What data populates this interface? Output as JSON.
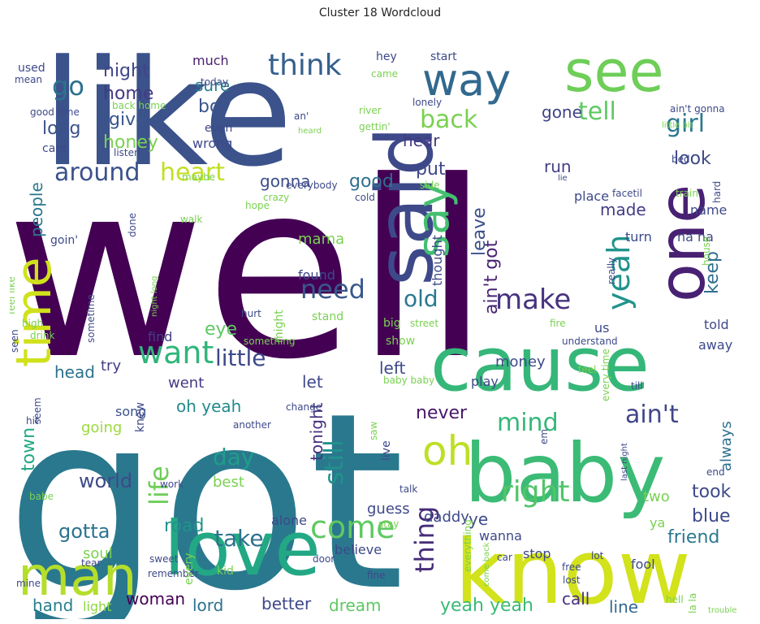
{
  "title": "Cluster 18 Wordcloud",
  "colormap": "viridis",
  "words": [
    {
      "text": "well",
      "color": "#440154"
    },
    {
      "text": "got",
      "color": "#2a788e"
    },
    {
      "text": "like",
      "color": "#3b528b"
    },
    {
      "text": "know",
      "color": "#d2e21b"
    },
    {
      "text": "cause",
      "color": "#35b779"
    },
    {
      "text": "baby",
      "color": "#3bbb75"
    },
    {
      "text": "love",
      "color": "#22a884"
    },
    {
      "text": "said",
      "color": "#3e4989"
    },
    {
      "text": "see",
      "color": "#6ece58"
    },
    {
      "text": "one",
      "color": "#482173"
    },
    {
      "text": "man",
      "color": "#b5de2b"
    },
    {
      "text": "way",
      "color": "#31688e"
    },
    {
      "text": "time",
      "color": "#d0e11c"
    },
    {
      "text": "say",
      "color": "#44bf70"
    },
    {
      "text": "oh",
      "color": "#bddf26"
    },
    {
      "text": "think",
      "color": "#355f8d"
    },
    {
      "text": "want",
      "color": "#31b57b"
    },
    {
      "text": "make",
      "color": "#46337e"
    },
    {
      "text": "yeah",
      "color": "#20938c"
    },
    {
      "text": "go",
      "color": "#2c728e"
    },
    {
      "text": "right",
      "color": "#52c569"
    },
    {
      "text": "come",
      "color": "#5ec962"
    },
    {
      "text": "need",
      "color": "#38588c"
    },
    {
      "text": "around",
      "color": "#3b528b"
    },
    {
      "text": "heart",
      "color": "#c2df23"
    },
    {
      "text": "little",
      "color": "#3e4989"
    },
    {
      "text": "tell",
      "color": "#5ec962"
    },
    {
      "text": "back",
      "color": "#7ad151"
    },
    {
      "text": "girl",
      "color": "#2a788e"
    },
    {
      "text": "mind",
      "color": "#35b779"
    },
    {
      "text": "ain't",
      "color": "#3f4788"
    },
    {
      "text": "old",
      "color": "#2a788e"
    },
    {
      "text": "life",
      "color": "#6ece58"
    },
    {
      "text": "day",
      "color": "#1f9e89"
    },
    {
      "text": "still",
      "color": "#21918c"
    },
    {
      "text": "thing",
      "color": "#472c7a"
    },
    {
      "text": "take",
      "color": "#2c728e"
    },
    {
      "text": "night",
      "color": "#404688"
    },
    {
      "text": "home",
      "color": "#443a83"
    },
    {
      "text": "give",
      "color": "#39568c"
    },
    {
      "text": "honey",
      "color": "#7ad151"
    },
    {
      "text": "long",
      "color": "#3b528b"
    },
    {
      "text": "boy",
      "color": "#3a548c"
    },
    {
      "text": "sure",
      "color": "#287d8e"
    },
    {
      "text": "much",
      "color": "#481f70"
    },
    {
      "text": "good",
      "color": "#2d708e"
    },
    {
      "text": "gonna",
      "color": "#3d4e8a"
    },
    {
      "text": "put",
      "color": "#3f4889"
    },
    {
      "text": "run",
      "color": "#433e85"
    },
    {
      "text": "gone",
      "color": "#404588"
    },
    {
      "text": "look",
      "color": "#3e4a89"
    },
    {
      "text": "hear",
      "color": "#443983"
    },
    {
      "text": "ain't got",
      "color": "#482475"
    },
    {
      "text": "made",
      "color": "#433d84"
    },
    {
      "text": "keep",
      "color": "#2e6f8e"
    },
    {
      "text": "leave",
      "color": "#3c508b"
    },
    {
      "text": "mama",
      "color": "#7ad151"
    },
    {
      "text": "people",
      "color": "#2a788e"
    },
    {
      "text": "town",
      "color": "#22a884"
    },
    {
      "text": "world",
      "color": "#3e4989"
    },
    {
      "text": "gotta",
      "color": "#2c728e"
    },
    {
      "text": "road",
      "color": "#20938c"
    },
    {
      "text": "head",
      "color": "#2c728e"
    },
    {
      "text": "let",
      "color": "#3e4989"
    },
    {
      "text": "left",
      "color": "#3e4989"
    },
    {
      "text": "never",
      "color": "#481769"
    },
    {
      "text": "tonight",
      "color": "#46307e"
    },
    {
      "text": "eye",
      "color": "#5ec962"
    },
    {
      "text": "find",
      "color": "#433e85"
    },
    {
      "text": "try",
      "color": "#433e85"
    },
    {
      "text": "went",
      "color": "#443b84"
    },
    {
      "text": "song",
      "color": "#3b528b"
    },
    {
      "text": "oh yeah",
      "color": "#238a8d"
    },
    {
      "text": "best",
      "color": "#7ad151"
    },
    {
      "text": "going",
      "color": "#9bd93c"
    },
    {
      "text": "hand",
      "color": "#277f8e"
    },
    {
      "text": "light",
      "color": "#90d743"
    },
    {
      "text": "woman",
      "color": "#440154"
    },
    {
      "text": "lord",
      "color": "#2c728e"
    },
    {
      "text": "better",
      "color": "#3e4989"
    },
    {
      "text": "dream",
      "color": "#5ec962"
    },
    {
      "text": "yeah yeah",
      "color": "#3aba76"
    },
    {
      "text": "call",
      "color": "#472f7d"
    },
    {
      "text": "line",
      "color": "#31688e"
    },
    {
      "text": "blue",
      "color": "#3e4989"
    },
    {
      "text": "friend",
      "color": "#2a788e"
    },
    {
      "text": "took",
      "color": "#3e4989"
    },
    {
      "text": "always",
      "color": "#2d708e"
    },
    {
      "text": "told",
      "color": "#3e4989"
    },
    {
      "text": "away",
      "color": "#3e4989"
    },
    {
      "text": "guess",
      "color": "#3e4989"
    },
    {
      "text": "daddy",
      "color": "#3e4989"
    },
    {
      "text": "ye",
      "color": "#3e4989"
    },
    {
      "text": "play",
      "color": "#3e4989"
    },
    {
      "text": "wanna",
      "color": "#3e4989"
    },
    {
      "text": "stop",
      "color": "#3e4989"
    },
    {
      "text": "two",
      "color": "#7ad151"
    },
    {
      "text": "ya",
      "color": "#7ad151"
    },
    {
      "text": "soul",
      "color": "#7ad151"
    },
    {
      "text": "believe",
      "color": "#3e4989"
    },
    {
      "text": "alone",
      "color": "#3e4989"
    },
    {
      "text": "stand",
      "color": "#7ad151"
    },
    {
      "text": "show",
      "color": "#7ad151"
    },
    {
      "text": "big",
      "color": "#7ad151"
    },
    {
      "text": "money",
      "color": "#3e4989"
    },
    {
      "text": "us",
      "color": "#3e4989"
    },
    {
      "text": "thought",
      "color": "#3e4989"
    },
    {
      "text": "found",
      "color": "#3e4989"
    },
    {
      "text": "place",
      "color": "#3e4989"
    },
    {
      "text": "turn",
      "color": "#3e4989"
    },
    {
      "text": "name",
      "color": "#3e4989"
    },
    {
      "text": "na na",
      "color": "#3e4989"
    },
    {
      "text": "really",
      "color": "#3e4989"
    },
    {
      "text": "might",
      "color": "#7ad151"
    },
    {
      "text": "hope",
      "color": "#7ad151"
    },
    {
      "text": "done",
      "color": "#3e4989"
    },
    {
      "text": "walk",
      "color": "#7ad151"
    },
    {
      "text": "goin'",
      "color": "#3e4989"
    },
    {
      "text": "sometime",
      "color": "#3e4989"
    },
    {
      "text": "wrong",
      "color": "#3e4989"
    },
    {
      "text": "even",
      "color": "#3e4989"
    },
    {
      "text": "care",
      "color": "#3e4989"
    },
    {
      "text": "listen",
      "color": "#3e4989"
    },
    {
      "text": "maybe",
      "color": "#7ad151"
    },
    {
      "text": "crazy",
      "color": "#7ad151"
    },
    {
      "text": "everybody",
      "color": "#3e4989"
    },
    {
      "text": "cold",
      "color": "#3e4989"
    },
    {
      "text": "hey",
      "color": "#3e4989"
    },
    {
      "text": "start",
      "color": "#3e4989"
    },
    {
      "text": "came",
      "color": "#7ad151"
    },
    {
      "text": "today",
      "color": "#3e4989"
    },
    {
      "text": "used",
      "color": "#3e4989"
    },
    {
      "text": "mean",
      "color": "#3e4989"
    },
    {
      "text": "good time",
      "color": "#3e4989"
    },
    {
      "text": "back home",
      "color": "#7ad151"
    },
    {
      "text": "river",
      "color": "#7ad151"
    },
    {
      "text": "lonely",
      "color": "#3e4989"
    },
    {
      "text": "ain't gonna",
      "color": "#3e4989"
    },
    {
      "text": "little bit",
      "color": "#7ad151"
    },
    {
      "text": "gettin'",
      "color": "#7ad151"
    },
    {
      "text": "an'",
      "color": "#3e4989"
    },
    {
      "text": "heard",
      "color": "#7ad151"
    },
    {
      "text": "bed",
      "color": "#3e4989"
    },
    {
      "text": "hard",
      "color": "#3e4989"
    },
    {
      "text": "train",
      "color": "#7ad151"
    },
    {
      "text": "facetil",
      "color": "#3e4989"
    },
    {
      "text": "side",
      "color": "#7ad151"
    },
    {
      "text": "lie",
      "color": "#3e4989"
    },
    {
      "text": "feel like",
      "color": "#7ad151"
    },
    {
      "text": "night long",
      "color": "#7ad151"
    },
    {
      "text": "high",
      "color": "#7ad151"
    },
    {
      "text": "seen",
      "color": "#3e4989"
    },
    {
      "text": "drink",
      "color": "#7ad151"
    },
    {
      "text": "hurt",
      "color": "#3e4989"
    },
    {
      "text": "something",
      "color": "#7ad151"
    },
    {
      "text": "street",
      "color": "#7ad151"
    },
    {
      "text": "fire",
      "color": "#7ad151"
    },
    {
      "text": "understand",
      "color": "#3e4989"
    },
    {
      "text": "house",
      "color": "#7ad151"
    },
    {
      "text": "feel",
      "color": "#7ad151"
    },
    {
      "text": "till",
      "color": "#3e4989"
    },
    {
      "text": "every time",
      "color": "#7ad151"
    },
    {
      "text": "baby baby",
      "color": "#7ad151"
    },
    {
      "text": "change",
      "color": "#3e4989"
    },
    {
      "text": "another",
      "color": "#3e4989"
    },
    {
      "text": "knew",
      "color": "#3e4989"
    },
    {
      "text": "seem",
      "color": "#3e4989"
    },
    {
      "text": "hit",
      "color": "#3e4989"
    },
    {
      "text": "live",
      "color": "#3e4989"
    },
    {
      "text": "saw",
      "color": "#7ad151"
    },
    {
      "text": "em",
      "color": "#3e4989"
    },
    {
      "text": "last night",
      "color": "#3e4989"
    },
    {
      "text": "end",
      "color": "#3e4989"
    },
    {
      "text": "old",
      "color": "#7ad151"
    },
    {
      "text": "talk",
      "color": "#3e4989"
    },
    {
      "text": "babe",
      "color": "#7ad151"
    },
    {
      "text": "work",
      "color": "#3e4989"
    },
    {
      "text": "tear",
      "color": "#3e4989"
    },
    {
      "text": "sweet",
      "color": "#3e4989"
    },
    {
      "text": "remember",
      "color": "#3e4989"
    },
    {
      "text": "every",
      "color": "#7ad151"
    },
    {
      "text": "kid",
      "color": "#7ad151"
    },
    {
      "text": "mine",
      "color": "#3e4989"
    },
    {
      "text": "door",
      "color": "#3e4989"
    },
    {
      "text": "stay",
      "color": "#7ad151"
    },
    {
      "text": "everything",
      "color": "#7ad151"
    },
    {
      "text": "come back",
      "color": "#7ad151"
    },
    {
      "text": "fine",
      "color": "#3e4989"
    },
    {
      "text": "car",
      "color": "#3e4989"
    },
    {
      "text": "lot",
      "color": "#3e4989"
    },
    {
      "text": "free",
      "color": "#3e4989"
    },
    {
      "text": "lost",
      "color": "#3e4989"
    },
    {
      "text": "fool",
      "color": "#3e4989"
    },
    {
      "text": "hell",
      "color": "#7ad151"
    },
    {
      "text": "la la",
      "color": "#7ad151"
    },
    {
      "text": "trouble",
      "color": "#7ad151"
    }
  ]
}
